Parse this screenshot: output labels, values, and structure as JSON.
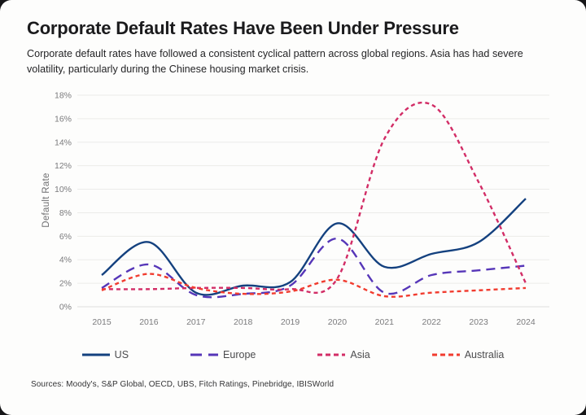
{
  "header": {
    "title": "Corporate Default Rates Have Been Under Pressure",
    "subtitle": "Corporate default rates have followed a consistent cyclical pattern across global regions. Asia has had severe volatility, particularly during the Chinese housing market crisis."
  },
  "footer": {
    "sources": "Sources: Moody's, S&P Global, OECD, UBS, Fitch Ratings, Pinebridge, IBISWorld"
  },
  "colors": {
    "card_background": "#fdfdfc",
    "gridline": "#ebebe9",
    "axis_text": "#7b7b7d",
    "title_text": "#1b1b1d",
    "us": "#14417f",
    "europe": "#5636b8",
    "asia": "#d22d66",
    "australia": "#f13c2f"
  },
  "chart_data": {
    "type": "line",
    "title": "Corporate Default Rates Have Been Under Pressure",
    "categories": [
      "2015",
      "2016",
      "2017",
      "2018",
      "2019",
      "2020",
      "2021",
      "2022",
      "2023",
      "2024"
    ],
    "xlabel": "",
    "ylabel": "Default Rate",
    "ylim": [
      0,
      18
    ],
    "y_tick_step": 2,
    "y_tick_suffix": "%",
    "grid": true,
    "legend_position": "bottom",
    "series": [
      {
        "name": "US",
        "color": "#14417f",
        "dash": "solid",
        "values": [
          2.7,
          5.5,
          1.2,
          1.8,
          2.1,
          7.1,
          3.4,
          4.5,
          5.5,
          9.2
        ]
      },
      {
        "name": "Europe",
        "color": "#5636b8",
        "dash": "long-dash",
        "values": [
          1.6,
          3.6,
          1.0,
          1.1,
          1.8,
          5.8,
          1.2,
          2.7,
          3.1,
          3.5
        ]
      },
      {
        "name": "Asia",
        "color": "#d22d66",
        "dash": "dash",
        "values": [
          1.5,
          1.5,
          1.6,
          1.6,
          1.5,
          2.4,
          14.3,
          17.2,
          10.6,
          2.0
        ]
      },
      {
        "name": "Australia",
        "color": "#f13c2f",
        "dash": "dash",
        "values": [
          1.4,
          2.8,
          1.6,
          1.1,
          1.3,
          2.3,
          0.9,
          1.2,
          1.4,
          1.6
        ]
      }
    ]
  }
}
